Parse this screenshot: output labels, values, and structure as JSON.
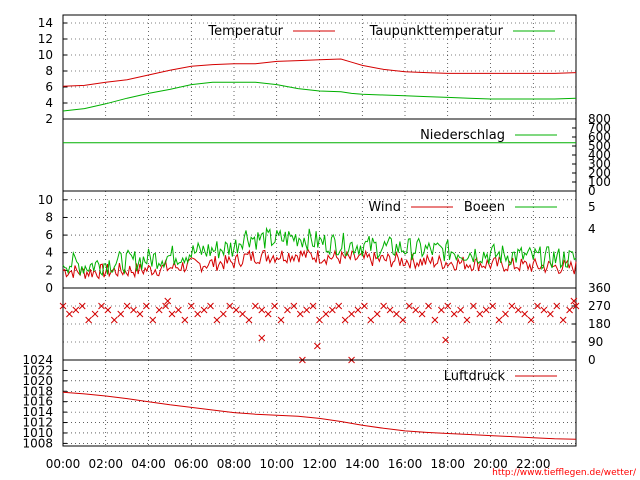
{
  "credit": "http://www.tiefflegen.de/wetter/",
  "colors": {
    "red": "#d40000",
    "green": "#00b000",
    "grid": "#000000"
  },
  "chart_data": [
    {
      "type": "line",
      "panel": "temperature",
      "xlabel": "",
      "x_ticks": [
        "00:00",
        "02:00",
        "04:00",
        "06:00",
        "08:00",
        "10:00",
        "12:00",
        "14:00",
        "16:00",
        "18:00",
        "20:00",
        "22:00"
      ],
      "ylim": [
        2,
        15
      ],
      "y_ticks": [
        "2",
        "4",
        "6",
        "8",
        "10",
        "12",
        "14"
      ],
      "grid": true,
      "legend_placement": "top-right",
      "x": [
        0,
        1,
        2,
        3,
        4,
        5,
        6,
        7,
        8,
        9,
        10,
        11,
        12,
        13,
        13.5,
        14,
        15,
        16,
        17,
        18,
        19,
        20,
        21,
        22,
        23,
        24
      ],
      "series": [
        {
          "name": "Temperatur",
          "color": "red",
          "values": [
            6.1,
            6.2,
            6.6,
            6.9,
            7.5,
            8.1,
            8.6,
            8.8,
            8.9,
            8.9,
            9.2,
            9.3,
            9.4,
            9.5,
            9.1,
            8.7,
            8.2,
            7.9,
            7.8,
            7.7,
            7.7,
            7.7,
            7.7,
            7.7,
            7.7,
            7.8
          ]
        },
        {
          "name": "Taupunkttemperatur",
          "color": "green",
          "values": [
            3.0,
            3.3,
            3.9,
            4.6,
            5.2,
            5.7,
            6.3,
            6.6,
            6.6,
            6.6,
            6.3,
            5.8,
            5.5,
            5.4,
            5.2,
            5.1,
            5.0,
            4.9,
            4.8,
            4.7,
            4.6,
            4.5,
            4.5,
            4.5,
            4.5,
            4.6
          ]
        }
      ]
    },
    {
      "type": "line",
      "panel": "precipitation",
      "ylim": [
        0,
        800
      ],
      "y_ticks": [
        "0",
        "100",
        "200",
        "300",
        "400",
        "500",
        "600",
        "700",
        "800"
      ],
      "legend_placement": "top-right",
      "x": [
        0,
        24
      ],
      "series": [
        {
          "name": "Niederschlag",
          "color": "green",
          "values": [
            535,
            535
          ]
        }
      ]
    },
    {
      "type": "line",
      "panel": "wind",
      "ylim": [
        0,
        11
      ],
      "y_ticks": [
        "0",
        "2",
        "4",
        "6",
        "8",
        "10"
      ],
      "y2_ticks": [
        "4",
        "5"
      ],
      "grid": true,
      "legend_placement": "top-right",
      "x": [
        0,
        1,
        2,
        3,
        4,
        5,
        6,
        7,
        8,
        8.5,
        9,
        10,
        11,
        12,
        13,
        14,
        15,
        16,
        17,
        18,
        19,
        20,
        21,
        22,
        23,
        24
      ],
      "series": [
        {
          "name": "Wind",
          "color": "red",
          "values": [
            2.0,
            1.8,
            1.9,
            2.0,
            2.1,
            2.3,
            2.6,
            2.8,
            2.9,
            3.5,
            3.6,
            3.7,
            3.8,
            3.6,
            3.4,
            3.3,
            3.2,
            3.1,
            3.0,
            2.9,
            2.8,
            2.7,
            2.6,
            2.5,
            2.4,
            2.3
          ]
        },
        {
          "name": "Boeen",
          "color": "green",
          "values": [
            3.0,
            2.5,
            2.8,
            3.0,
            3.3,
            3.6,
            4.0,
            4.3,
            4.6,
            6.0,
            5.6,
            5.5,
            5.8,
            5.2,
            5.0,
            4.8,
            4.6,
            4.5,
            4.3,
            4.2,
            4.0,
            3.8,
            3.7,
            3.5,
            3.4,
            3.3
          ]
        }
      ]
    },
    {
      "type": "scatter",
      "panel": "wind-direction",
      "ylim": [
        0,
        360
      ],
      "y_ticks": [
        "0",
        "90",
        "180",
        "270",
        "360"
      ],
      "grid": true,
      "marker": "x",
      "color": "red",
      "x": [
        0,
        0.3,
        0.6,
        0.9,
        1.2,
        1.5,
        1.8,
        2.1,
        2.4,
        2.7,
        3.0,
        3.3,
        3.6,
        3.9,
        4.2,
        4.5,
        4.8,
        5.1,
        5.4,
        5.7,
        6.0,
        6.3,
        6.6,
        6.9,
        7.2,
        7.5,
        7.8,
        8.1,
        8.4,
        8.7,
        9.0,
        9.3,
        9.6,
        9.9,
        10.2,
        10.5,
        10.8,
        11.1,
        11.4,
        11.7,
        12.0,
        12.3,
        12.6,
        12.9,
        13.2,
        13.5,
        13.8,
        14.1,
        14.4,
        14.7,
        15.0,
        15.3,
        15.6,
        15.9,
        16.2,
        16.5,
        16.8,
        17.1,
        17.4,
        17.7,
        18.0,
        18.3,
        18.6,
        18.9,
        19.2,
        19.5,
        19.8,
        20.1,
        20.4,
        20.7,
        21.0,
        21.3,
        21.6,
        21.9,
        22.2,
        22.5,
        22.8,
        23.1,
        23.4,
        23.7,
        24.0,
        4.9,
        9.3,
        11.2,
        11.9,
        13.5,
        17.9,
        23.9
      ],
      "values": [
        270,
        230,
        250,
        270,
        200,
        230,
        270,
        250,
        200,
        230,
        270,
        250,
        230,
        270,
        200,
        250,
        270,
        230,
        250,
        200,
        270,
        230,
        250,
        270,
        200,
        230,
        270,
        250,
        230,
        200,
        270,
        250,
        230,
        270,
        200,
        250,
        270,
        230,
        250,
        270,
        200,
        230,
        250,
        270,
        200,
        230,
        250,
        270,
        200,
        230,
        270,
        250,
        230,
        200,
        270,
        250,
        230,
        270,
        200,
        250,
        270,
        230,
        250,
        200,
        270,
        230,
        250,
        270,
        200,
        230,
        270,
        250,
        230,
        200,
        270,
        250,
        230,
        270,
        200,
        250,
        270,
        295,
        110,
        0,
        70,
        0,
        100,
        295
      ]
    },
    {
      "type": "line",
      "panel": "pressure",
      "ylim": [
        1007.5,
        1024
      ],
      "y_ticks": [
        "1008",
        "1010",
        "1012",
        "1014",
        "1016",
        "1018",
        "1020",
        "1022",
        "1024"
      ],
      "grid": true,
      "legend_placement": "top-right",
      "x": [
        0,
        1,
        2,
        3,
        4,
        5,
        6,
        7,
        8,
        9,
        10,
        11,
        12,
        13,
        14,
        15,
        16,
        17,
        18,
        19,
        20,
        21,
        22,
        23,
        24
      ],
      "series": [
        {
          "name": "Luftdruck",
          "color": "red",
          "values": [
            1017.8,
            1017.5,
            1017.1,
            1016.6,
            1016.0,
            1015.4,
            1014.9,
            1014.4,
            1013.9,
            1013.6,
            1013.4,
            1013.2,
            1012.8,
            1012.2,
            1011.5,
            1010.9,
            1010.4,
            1010.1,
            1009.9,
            1009.7,
            1009.5,
            1009.3,
            1009.1,
            1008.9,
            1008.8
          ]
        }
      ]
    }
  ]
}
